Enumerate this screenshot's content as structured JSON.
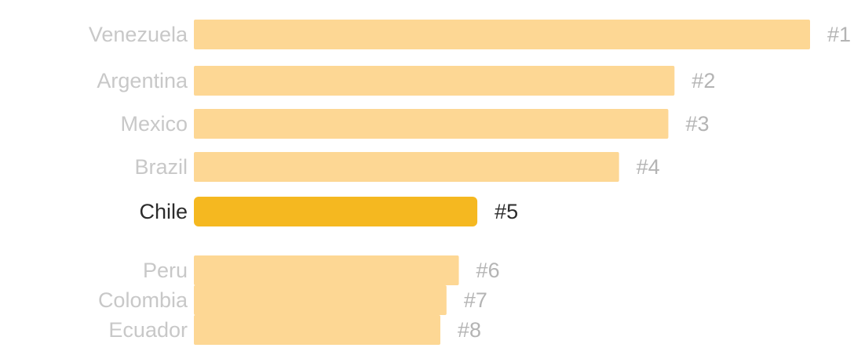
{
  "chart_data": {
    "type": "bar",
    "orientation": "horizontal",
    "title": "",
    "xlabel": "",
    "ylabel": "",
    "xlim": [
      0,
      100
    ],
    "grid": false,
    "legend": "none",
    "highlight": "Chile",
    "categories": [
      "Venezuela",
      "Argentina",
      "Mexico",
      "Brazil",
      "Chile",
      "Peru",
      "Colombia",
      "Ecuador"
    ],
    "values": [
      100,
      78,
      77,
      69,
      46,
      43,
      41,
      40
    ],
    "ranks": [
      "#1",
      "#2",
      "#3",
      "#4",
      "#5",
      "#6",
      "#7",
      "#8"
    ],
    "colors": {
      "bar": "#fdd794",
      "bar_highlight": "#f5b820",
      "label": "#c8c8c8",
      "label_highlight": "#2b2b2b"
    }
  }
}
